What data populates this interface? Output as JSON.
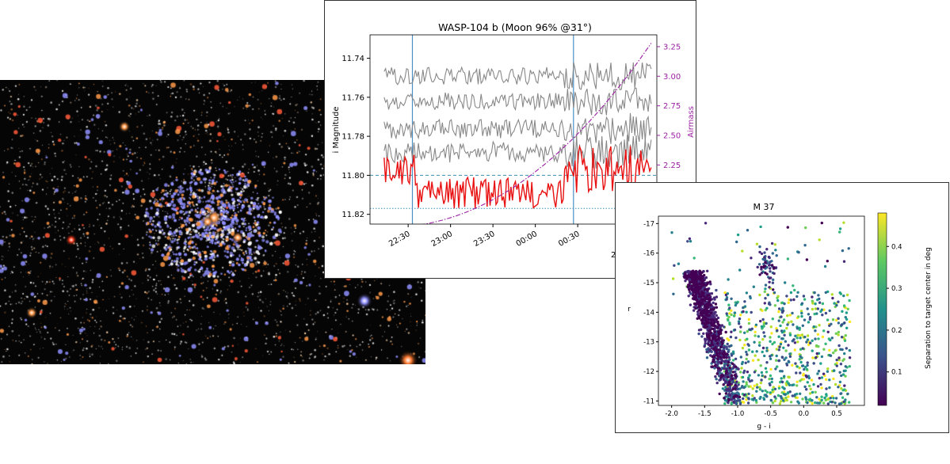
{
  "photo": {
    "icon": "star-cluster-photo",
    "colors": {
      "background": "#050505",
      "blue_stars": "#8f8fff",
      "orange_stars": "#ff9a4a",
      "white_stars": "#ffffff"
    }
  },
  "lightcurve": {
    "chart_data": {
      "type": "line",
      "title": "WASP-104 b (Moon 96% @31°)",
      "ylabel": "i Magnitude",
      "y2label": "Airmass",
      "ylim": [
        11.825,
        11.728
      ],
      "y_inverted": true,
      "y_ticks": [
        "11.74",
        "11.76",
        "11.78",
        "11.80",
        "11.82"
      ],
      "y2lim": [
        1.75,
        3.35
      ],
      "y2_ticks": [
        "2.00",
        "2.25",
        "2.50",
        "2.75",
        "3.00",
        "3.25"
      ],
      "x_ticks": [
        "22:30",
        "23:00",
        "23:30",
        "00:00",
        "00:30"
      ],
      "x_partial_label": "2",
      "xlim_minutes_after_2200": [
        3,
        206
      ],
      "vlines_minutes_after_2200": [
        33,
        147
      ],
      "hlines": [
        {
          "y": 11.8,
          "style": "dashed"
        },
        {
          "y": 11.817,
          "style": "dotted"
        }
      ],
      "series": [
        {
          "role": "comparison",
          "color": "#888888",
          "base": 11.749,
          "amp": 0.0045
        },
        {
          "role": "comparison",
          "color": "#888888",
          "base": 11.762,
          "amp": 0.0045
        },
        {
          "role": "comparison",
          "color": "#888888",
          "base": 11.776,
          "amp": 0.005
        },
        {
          "role": "comparison",
          "color": "#888888",
          "base": 11.788,
          "amp": 0.0055
        },
        {
          "role": "target",
          "color": "#e81010",
          "base_out": 11.797,
          "base_in": 11.809,
          "amp": 0.008
        },
        {
          "role": "airmass",
          "color": "#9b1fa3",
          "style": "dashdot",
          "start": 1.72,
          "end": 3.28
        }
      ]
    }
  },
  "cmd": {
    "chart_data": {
      "type": "scatter",
      "title": "M 37",
      "xlabel": "g - i",
      "ylabel": "r",
      "xlim": [
        -2.2,
        0.92
      ],
      "ylim": [
        -10.85,
        -17.25
      ],
      "x_ticks": [
        "-2.0",
        "-1.5",
        "-1.0",
        "-0.5",
        "0.0",
        "0.5"
      ],
      "y_ticks": [
        "-17",
        "-16",
        "-15",
        "-14",
        "-13",
        "-12",
        "-11"
      ],
      "colorbar": {
        "label": "Separation to target center in deg",
        "range": [
          0.02,
          0.48
        ],
        "ticks": [
          "0.1",
          "0.2",
          "0.3",
          "0.4"
        ],
        "colormap": "viridis"
      }
    }
  }
}
